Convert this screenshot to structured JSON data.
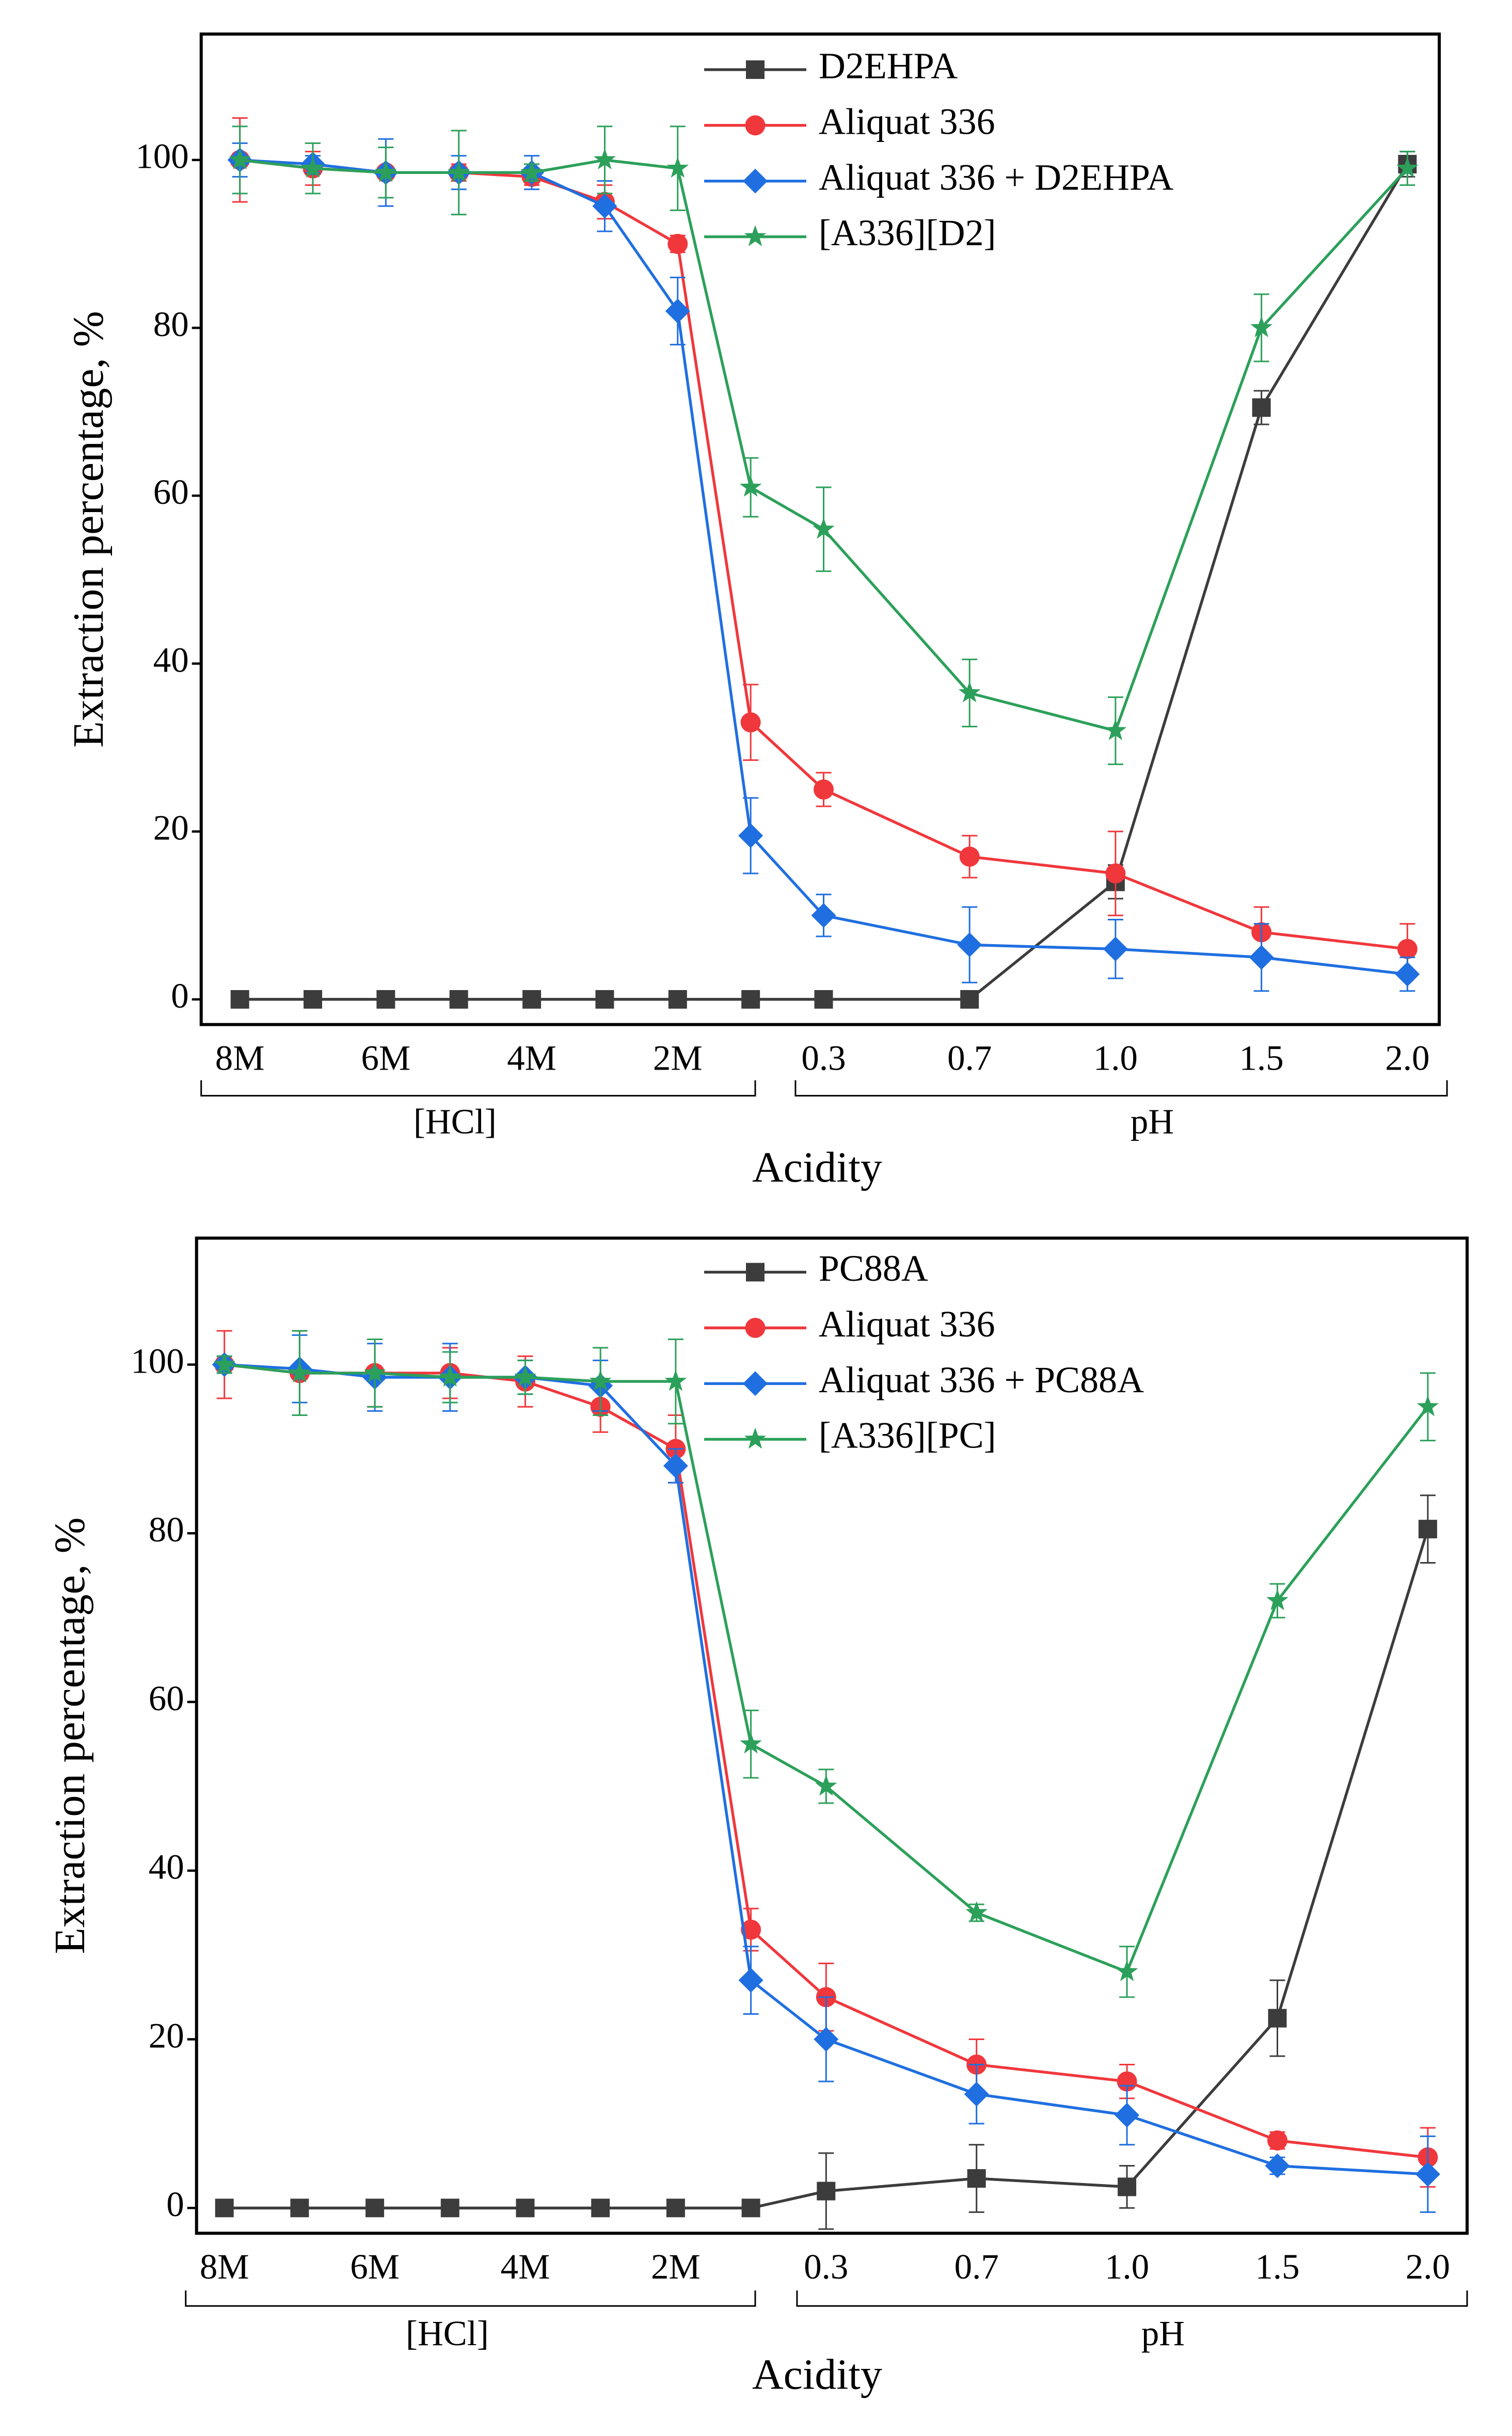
{
  "charts": [
    {
      "chart_data": {
        "type": "line",
        "categories": [
          "8M",
          null,
          "6M",
          null,
          "4M",
          null,
          "2M",
          null,
          "0.3",
          "0.7",
          "1.0",
          "1.5",
          "2.0"
        ],
        "groups": [
          "[HCl]",
          "pH"
        ],
        "x_label": "Acidity",
        "y_label": "Extraction percentage, %",
        "ylim": [
          -3,
          115
        ],
        "yticks": [
          0,
          20,
          40,
          60,
          80,
          100
        ],
        "grid": false,
        "legend": "top",
        "series": [
          {
            "name": "D2EHPA",
            "color": "#3c3c3c",
            "marker": "square",
            "values": [
              0,
              0,
              0,
              0,
              0,
              0,
              0,
              0,
              0,
              0,
              14,
              70.5,
              99.5
            ],
            "errors": [
              0.3,
              0.3,
              0.3,
              0.3,
              0.3,
              0.3,
              0.3,
              0.3,
              0.3,
              0.3,
              2,
              2,
              1.5
            ]
          },
          {
            "name": "Aliquat 336",
            "color": "#f0373c",
            "marker": "circle",
            "values": [
              100,
              99,
              98.5,
              98.5,
              98,
              95,
              90,
              33,
              25,
              17,
              15,
              8,
              6
            ],
            "errors": [
              5,
              2,
              3,
              1,
              1,
              2,
              1,
              4.5,
              2,
              2.5,
              5,
              3,
              3
            ]
          },
          {
            "name": "Aliquat 336 + D2EHPA",
            "color": "#1f6fe0",
            "marker": "diamond",
            "values": [
              100,
              99.5,
              98.5,
              98.5,
              98.5,
              94.5,
              82,
              19.5,
              10,
              6.5,
              6,
              5,
              3
            ],
            "errors": [
              2,
              1,
              4,
              2,
              2,
              3,
              4,
              4.5,
              2.5,
              4.5,
              3.5,
              4,
              2
            ]
          },
          {
            "name": "[A336][D2]",
            "color": "#2ca05a",
            "marker": "star",
            "values": [
              100,
              99,
              98.5,
              98.5,
              98.5,
              100,
              99,
              61,
              56,
              36.5,
              32,
              80,
              99
            ],
            "errors": [
              4,
              3,
              3,
              5,
              1,
              4,
              5,
              3.5,
              5,
              4,
              4,
              4,
              2
            ]
          }
        ]
      }
    },
    {
      "chart_data": {
        "type": "line",
        "categories": [
          "8M",
          null,
          "6M",
          null,
          "4M",
          null,
          "2M",
          null,
          "0.3",
          "0.7",
          "1.0",
          "1.5",
          "2.0"
        ],
        "groups": [
          "[HCl]",
          "pH"
        ],
        "x_label": "Acidity",
        "y_label": "Extraction percentage, %",
        "ylim": [
          -3,
          115
        ],
        "yticks": [
          0,
          20,
          40,
          60,
          80,
          100
        ],
        "grid": false,
        "legend": "top",
        "series": [
          {
            "name": "PC88A",
            "color": "#3c3c3c",
            "marker": "square",
            "values": [
              0,
              0,
              0,
              0,
              0,
              0,
              0,
              0,
              2,
              3.5,
              2.5,
              22.5,
              80.5
            ],
            "errors": [
              0.3,
              0.3,
              0.3,
              0.3,
              0.3,
              0.3,
              0.3,
              0.3,
              4.5,
              4,
              2.5,
              4.5,
              4
            ]
          },
          {
            "name": "Aliquat 336",
            "color": "#f0373c",
            "marker": "circle",
            "values": [
              100,
              99,
              99,
              99,
              98,
              95,
              90,
              33,
              25,
              17,
              15,
              8,
              6
            ],
            "errors": [
              4,
              5,
              4,
              3,
              3,
              3,
              4,
              2.5,
              4,
              3,
              2,
              1,
              3.5
            ]
          },
          {
            "name": "Aliquat 336 + PC88A",
            "color": "#1f6fe0",
            "marker": "diamond",
            "values": [
              100,
              99.5,
              98.5,
              98.5,
              98.5,
              97.5,
              88,
              27,
              20,
              13.5,
              11,
              5,
              4
            ],
            "errors": [
              1,
              4,
              4,
              4,
              2,
              3,
              2,
              4,
              5,
              3.5,
              3.5,
              1,
              4.5
            ]
          },
          {
            "name": "[A336][PC]",
            "color": "#2ca05a",
            "marker": "star",
            "values": [
              100,
              99,
              99,
              98.5,
              98.5,
              98,
              98,
              55,
              50,
              35,
              28,
              72,
              95
            ],
            "errors": [
              1,
              5,
              4,
              3,
              2,
              4,
              5,
              4,
              2,
              1,
              3,
              2,
              4
            ]
          }
        ]
      }
    }
  ]
}
